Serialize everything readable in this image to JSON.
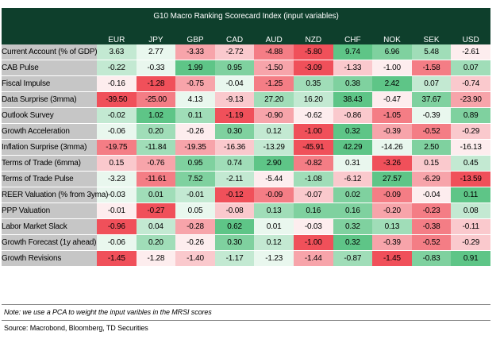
{
  "chart_data": {
    "type": "table",
    "title": "G10 Macro Ranking Scorecard Index (input variables)",
    "columns": [
      "EUR",
      "JPY",
      "GBP",
      "CAD",
      "AUD",
      "NZD",
      "CHF",
      "NOK",
      "SEK",
      "USD"
    ],
    "rows": [
      {
        "label": "Current Account (% of GDP)",
        "values": [
          3.63,
          2.77,
          -3.33,
          -2.72,
          -4.88,
          -5.8,
          9.74,
          6.96,
          5.48,
          -2.61
        ]
      },
      {
        "label": "CAB Pulse",
        "values": [
          -0.22,
          -0.33,
          1.99,
          0.95,
          -1.5,
          -3.09,
          -1.33,
          -1.0,
          -1.58,
          0.07
        ]
      },
      {
        "label": "Fiscal Impulse",
        "values": [
          -0.16,
          -1.28,
          -0.75,
          -0.04,
          -1.25,
          0.35,
          0.38,
          2.42,
          0.07,
          -0.74
        ]
      },
      {
        "label": "Data Surprise (3mma)",
        "values": [
          -39.5,
          -25.0,
          4.13,
          -9.13,
          27.2,
          16.2,
          38.43,
          -0.47,
          37.67,
          -23.9
        ]
      },
      {
        "label": "Outlook Survey",
        "values": [
          -0.02,
          1.02,
          0.11,
          -1.19,
          -0.9,
          -0.62,
          -0.86,
          -1.05,
          -0.39,
          0.89
        ]
      },
      {
        "label": "Growth Acceleration",
        "values": [
          -0.06,
          0.2,
          -0.26,
          0.3,
          0.12,
          -1.0,
          0.32,
          -0.39,
          -0.52,
          -0.29
        ]
      },
      {
        "label": "Inflation Surprise (3mma)",
        "values": [
          -19.75,
          -11.84,
          -19.35,
          -16.36,
          -13.29,
          -45.91,
          42.29,
          -14.26,
          2.5,
          -16.13
        ]
      },
      {
        "label": "Terms of Trade (6mma)",
        "values": [
          0.15,
          -0.76,
          0.95,
          0.74,
          2.9,
          -0.82,
          0.31,
          -3.26,
          0.15,
          0.45
        ]
      },
      {
        "label": "Terms of Trade Pulse",
        "values": [
          -3.23,
          -11.61,
          7.52,
          -2.11,
          -5.44,
          -1.08,
          -6.12,
          27.57,
          -6.29,
          -13.59
        ]
      },
      {
        "label": "REER Valuation (% from 3yma)",
        "values": [
          -0.03,
          0.01,
          -0.01,
          -0.12,
          -0.09,
          -0.07,
          0.02,
          -0.09,
          -0.04,
          0.11
        ]
      },
      {
        "label": "PPP Valuation",
        "values": [
          -0.01,
          -0.27,
          0.05,
          -0.08,
          0.13,
          0.16,
          0.16,
          -0.2,
          -0.23,
          0.08
        ]
      },
      {
        "label": "Labor Market Slack",
        "values": [
          -0.96,
          0.04,
          -0.28,
          0.62,
          0.01,
          -0.03,
          0.32,
          0.13,
          -0.38,
          -0.11
        ]
      },
      {
        "label": "Growth Forecast (1y ahead)",
        "values": [
          -0.06,
          0.2,
          -0.26,
          0.3,
          0.12,
          -1.0,
          0.32,
          -0.39,
          -0.52,
          -0.29
        ]
      },
      {
        "label": "Growth Revisions",
        "values": [
          -1.45,
          -1.28,
          -1.4,
          -1.17,
          -1.23,
          -1.44,
          -0.87,
          -1.45,
          -0.83,
          0.91
        ]
      }
    ],
    "note": "Note: we use a PCA to weight the input varibles in the MRSI scores",
    "source": "Source: Macrobond, Bloomberg, TD Securities",
    "colors": {
      "header_bg": "#0e3f2c",
      "label_bg": "#c6c6c6",
      "positive": "#5ec587",
      "negative": "#f0505a",
      "neutral": "#ffffff"
    }
  }
}
